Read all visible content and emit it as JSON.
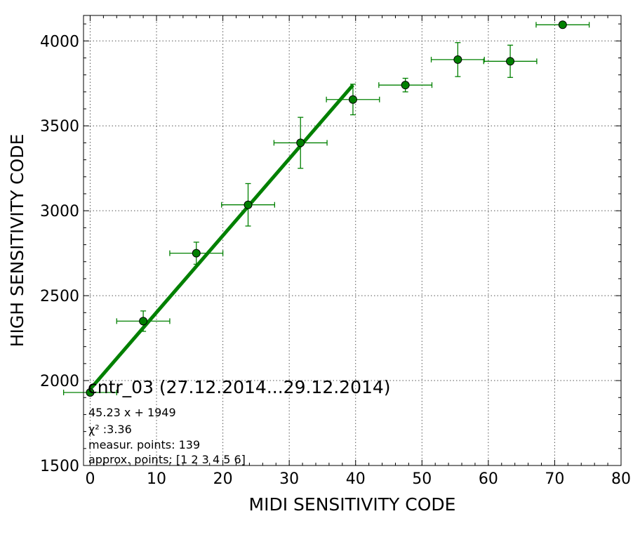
{
  "chart_data": {
    "type": "scatter",
    "xlabel": "MIDI SENSITIVITY CODE",
    "ylabel": "HIGH SENSITIVITY CODE",
    "xlim": [
      -1,
      80
    ],
    "ylim": [
      1500,
      4150
    ],
    "xticks": [
      0,
      10,
      20,
      30,
      40,
      50,
      60,
      70,
      80
    ],
    "yticks": [
      1500,
      2000,
      2500,
      3000,
      3500,
      4000
    ],
    "grid": true,
    "color": "#008000",
    "series": [
      {
        "points": [
          {
            "x": 0,
            "y": 1930,
            "xerr": 4.0,
            "yerr": 10
          },
          {
            "x": 8,
            "y": 2350,
            "xerr": 4.0,
            "yerr": 60
          },
          {
            "x": 16,
            "y": 2750,
            "xerr": 4.0,
            "yerr": 65
          },
          {
            "x": 23.8,
            "y": 3035,
            "xerr": 4.0,
            "yerr": 125
          },
          {
            "x": 31.7,
            "y": 3400,
            "xerr": 4.0,
            "yerr": 150
          },
          {
            "x": 39.6,
            "y": 3655,
            "xerr": 4.0,
            "yerr": 90
          },
          {
            "x": 47.5,
            "y": 3740,
            "xerr": 4.0,
            "yerr": 40
          },
          {
            "x": 55.4,
            "y": 3890,
            "xerr": 4.0,
            "yerr": 100
          },
          {
            "x": 63.3,
            "y": 3880,
            "xerr": 4.0,
            "yerr": 95
          },
          {
            "x": 71.2,
            "y": 4095,
            "xerr": 4.0,
            "yerr": 0
          }
        ]
      }
    ],
    "fit_line": {
      "slope": 45.23,
      "intercept": 1949,
      "x_range": [
        0,
        39.6
      ]
    },
    "annotations": {
      "title": "cntr_03 (27.12.2014...29.12.2014)",
      "fit_label": "45.23 x + 1949",
      "chi2_label": "χ² :3.36",
      "points_label": "measur. points: 139",
      "approx_label": "approx. points: [1 2 3 4 5 6]"
    }
  }
}
